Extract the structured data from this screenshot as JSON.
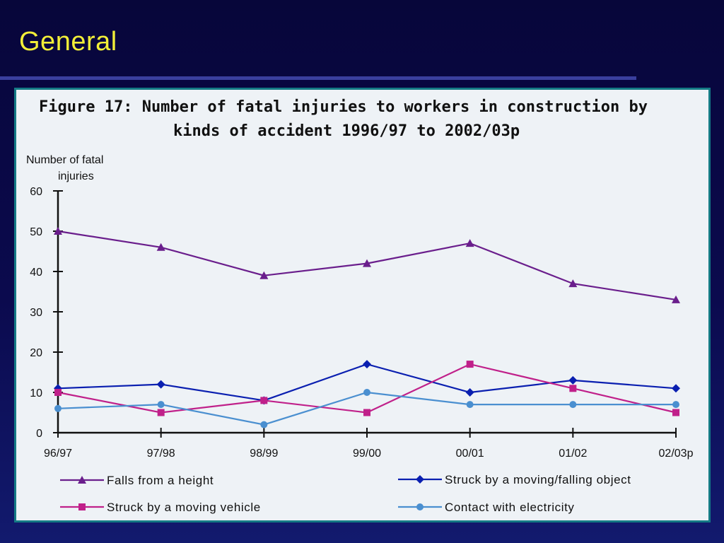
{
  "slide": {
    "title": "General"
  },
  "colors": {
    "background": "#0b0a4e",
    "title": "#f2ee38",
    "panel": "#eef2f6",
    "panel_border": "#147a85"
  },
  "chart_data": {
    "type": "line",
    "title": "Figure 17:  Number of fatal injuries to workers in construction by",
    "title_line2": "kinds of accident 1996/97 to 2002/03p",
    "ylabel_line1": "Number of fatal",
    "ylabel_line2": "injuries",
    "xlabel": "",
    "ylim": [
      0,
      60
    ],
    "yticks": [
      "0",
      "10",
      "20",
      "30",
      "40",
      "50",
      "60"
    ],
    "categories": [
      "96/97",
      "97/98",
      "98/99",
      "99/00",
      "00/01",
      "01/02",
      "02/03p"
    ],
    "grid": false,
    "legend_position": "bottom",
    "series": [
      {
        "name": "Falls from a height",
        "color": "#6a1e8c",
        "marker": "triangle",
        "values": [
          50,
          46,
          39,
          42,
          47,
          37,
          33
        ]
      },
      {
        "name": "Struck by a moving/falling object",
        "color": "#0a1fb0",
        "marker": "diamond",
        "values": [
          11,
          12,
          8,
          17,
          10,
          13,
          11
        ]
      },
      {
        "name": "Struck by a moving vehicle",
        "color": "#c0208a",
        "marker": "square",
        "values": [
          10,
          5,
          8,
          5,
          17,
          11,
          5
        ]
      },
      {
        "name": "Contact with electricity",
        "color": "#4a8fd0",
        "marker": "circle",
        "values": [
          6,
          7,
          2,
          10,
          7,
          7,
          7
        ]
      }
    ]
  }
}
